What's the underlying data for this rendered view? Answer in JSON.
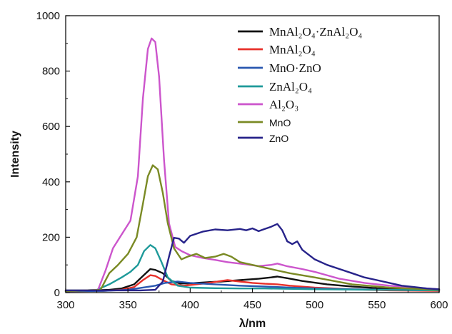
{
  "chart_data": {
    "type": "line",
    "xlabel": "λ/nm",
    "ylabel": "Intensity",
    "xlim": [
      300,
      600
    ],
    "ylim": [
      0,
      1000
    ],
    "xticks": [
      300,
      350,
      400,
      450,
      500,
      550,
      600
    ],
    "yticks": [
      0,
      200,
      400,
      600,
      800,
      1000
    ],
    "grid": false,
    "legend_position": "top-right",
    "series": [
      {
        "name": "MnAl₂O₄·ZnAl₂O₄",
        "font": "serif",
        "color": "#111111",
        "x": [
          300,
          320,
          335,
          345,
          355,
          362,
          368,
          372,
          378,
          385,
          392,
          398,
          405,
          415,
          425,
          440,
          455,
          465,
          470,
          478,
          490,
          510,
          530,
          550,
          575,
          600
        ],
        "y": [
          8,
          8,
          10,
          15,
          30,
          60,
          85,
          82,
          70,
          42,
          33,
          33,
          35,
          38,
          40,
          45,
          50,
          55,
          58,
          52,
          42,
          30,
          22,
          16,
          12,
          10
        ]
      },
      {
        "name": "MnAl₂O₄",
        "font": "serif",
        "color": "#e8302a",
        "x": [
          300,
          330,
          345,
          355,
          362,
          368,
          372,
          378,
          385,
          395,
          405,
          415,
          425,
          430,
          440,
          450,
          460,
          470,
          480,
          500,
          530,
          560,
          600
        ],
        "y": [
          5,
          6,
          10,
          20,
          45,
          63,
          60,
          45,
          30,
          25,
          30,
          35,
          42,
          45,
          40,
          35,
          32,
          30,
          25,
          18,
          12,
          8,
          6
        ]
      },
      {
        "name": "MnO·ZnO",
        "font": "serif",
        "color": "#2a58b0",
        "x": [
          300,
          330,
          350,
          365,
          372,
          380,
          390,
          400,
          420,
          440,
          460,
          470,
          480,
          500,
          530,
          560,
          600
        ],
        "y": [
          5,
          6,
          10,
          20,
          25,
          35,
          40,
          35,
          30,
          25,
          22,
          20,
          18,
          15,
          12,
          10,
          8
        ]
      },
      {
        "name": "ZnAl₂O₄",
        "font": "serif",
        "color": "#1f9a9a",
        "x": [
          300,
          325,
          335,
          345,
          352,
          358,
          363,
          368,
          372,
          377,
          382,
          390,
          400,
          420,
          440,
          460,
          500,
          550,
          600
        ],
        "y": [
          5,
          10,
          30,
          55,
          75,
          100,
          150,
          172,
          160,
          110,
          55,
          25,
          18,
          16,
          15,
          15,
          12,
          10,
          8
        ]
      },
      {
        "name": "Al₂O₃",
        "font": "serif",
        "color": "#cc55cc",
        "x": [
          300,
          326,
          332,
          338,
          345,
          352,
          358,
          362,
          366,
          369,
          372,
          375,
          379,
          383,
          388,
          393,
          400,
          410,
          420,
          430,
          445,
          455,
          465,
          470,
          478,
          490,
          500,
          520,
          540,
          560,
          580,
          600
        ],
        "y": [
          5,
          10,
          80,
          160,
          210,
          260,
          420,
          700,
          880,
          918,
          905,
          780,
          480,
          250,
          165,
          150,
          135,
          125,
          118,
          110,
          102,
          96,
          100,
          105,
          95,
          85,
          75,
          50,
          35,
          25,
          18,
          12
        ]
      },
      {
        "name": "MnO",
        "font": "sans",
        "color": "#7a8a24",
        "x": [
          300,
          328,
          335,
          342,
          350,
          357,
          362,
          366,
          370,
          374,
          378,
          382,
          387,
          393,
          398,
          405,
          412,
          420,
          427,
          433,
          440,
          450,
          460,
          470,
          480,
          500,
          530,
          560,
          600
        ],
        "y": [
          5,
          10,
          70,
          100,
          140,
          200,
          320,
          420,
          460,
          445,
          360,
          250,
          160,
          120,
          130,
          140,
          125,
          130,
          140,
          130,
          110,
          100,
          90,
          80,
          70,
          55,
          30,
          18,
          10
        ]
      },
      {
        "name": "ZnO",
        "font": "sans",
        "color": "#27238a",
        "x": [
          300,
          340,
          360,
          372,
          378,
          383,
          387,
          391,
          395,
          400,
          410,
          420,
          430,
          440,
          445,
          450,
          455,
          460,
          465,
          470,
          474,
          478,
          482,
          486,
          490,
          500,
          510,
          520,
          530,
          540,
          550,
          560,
          570,
          580,
          590,
          600
        ],
        "y": [
          8,
          8,
          8,
          10,
          40,
          130,
          198,
          195,
          180,
          205,
          220,
          228,
          225,
          230,
          225,
          232,
          222,
          230,
          238,
          248,
          225,
          185,
          175,
          185,
          155,
          120,
          100,
          85,
          70,
          55,
          45,
          35,
          25,
          20,
          15,
          12
        ]
      }
    ]
  }
}
